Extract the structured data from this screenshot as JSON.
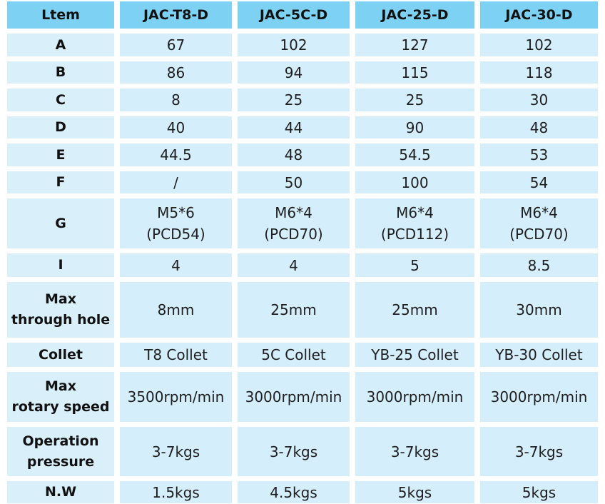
{
  "table": {
    "header": [
      "Ltem",
      "JAC-T8-D",
      "JAC-5C-D",
      "JAC-25-D",
      "JAC-30-D"
    ],
    "rows": [
      [
        "A",
        "67",
        "102",
        "127",
        "102"
      ],
      [
        "B",
        "86",
        "94",
        "115",
        "118"
      ],
      [
        "C",
        "8",
        "25",
        "25",
        "30"
      ],
      [
        "D",
        "40",
        "44",
        "90",
        "48"
      ],
      [
        "E",
        "44.5",
        "48",
        "54.5",
        "53"
      ],
      [
        "F",
        "/",
        "50",
        "100",
        "54"
      ],
      [
        "G",
        "M5*6\n(PCD54)",
        "M6*4\n(PCD70)",
        "M6*4\n(PCD112)",
        "M6*4\n(PCD70)"
      ],
      [
        "I",
        "4",
        "4",
        "5",
        "8.5"
      ],
      [
        "Max\nthrough hole",
        "8mm",
        "25mm",
        "25mm",
        "30mm"
      ],
      [
        "Collet",
        "T8 Collet",
        "5C Collet",
        "YB-25 Collet",
        "YB-30 Collet"
      ],
      [
        "Max\nrotary speed",
        "3500rpm/min",
        "3000rpm/min",
        "3000rpm/min",
        "3000rpm/min"
      ],
      [
        "Operation\npressure",
        "3-7kgs",
        "3-7kgs",
        "3-7kgs",
        "3-7kgs"
      ],
      [
        "N.W",
        "1.5kgs",
        "4.5kgs",
        "5kgs",
        "5kgs"
      ]
    ]
  }
}
